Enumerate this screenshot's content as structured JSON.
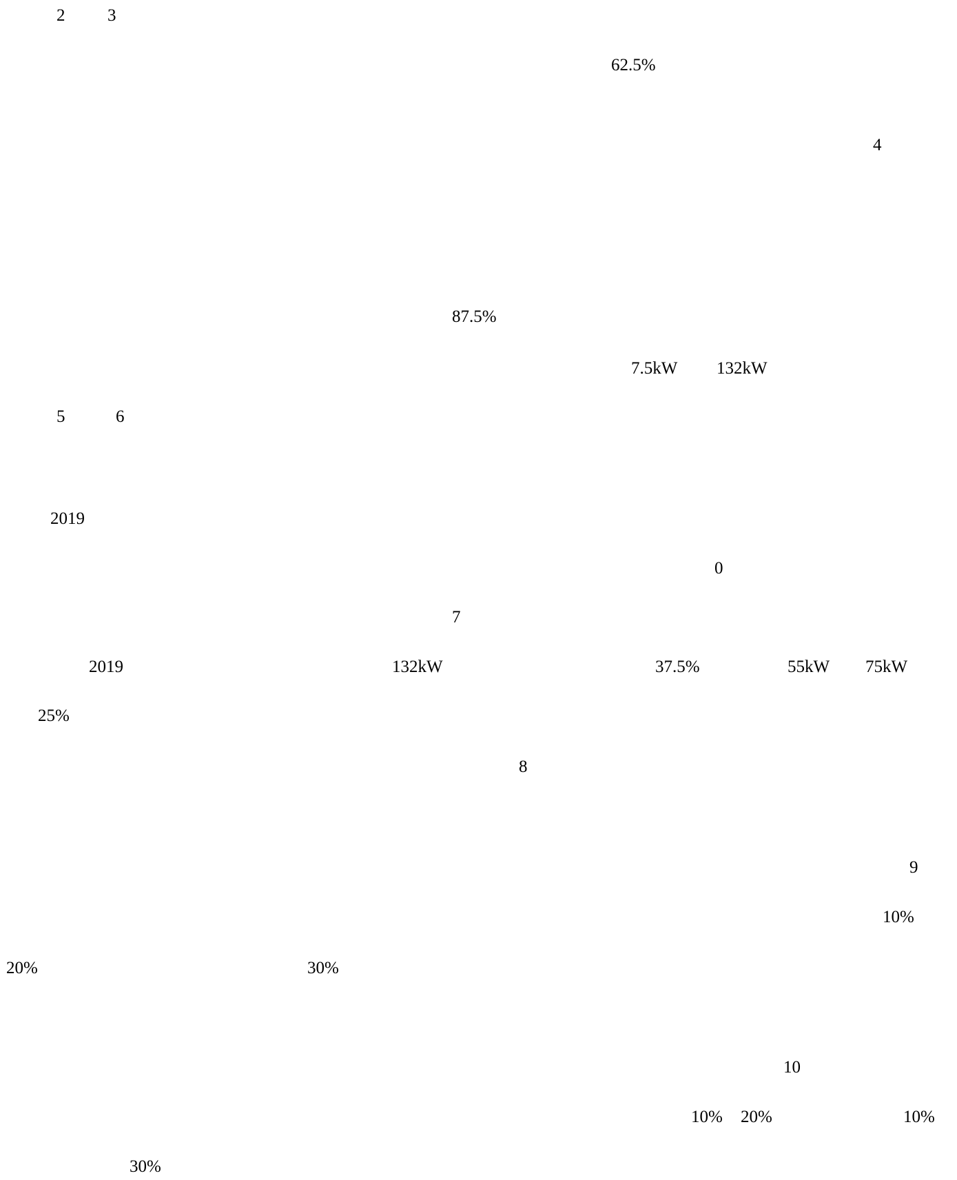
{
  "fragments": [
    "2",
    "3",
    "62.5%",
    "4",
    "87.5%",
    "7.5kW",
    "132kW",
    "5",
    "6",
    "2019",
    "0",
    "7",
    "2019",
    "132kW",
    "37.5%",
    "55kW",
    "75kW",
    "25%",
    "8",
    "9",
    "10%",
    "20%",
    "30%",
    "10",
    "10%",
    "20%",
    "10%",
    "30%"
  ]
}
